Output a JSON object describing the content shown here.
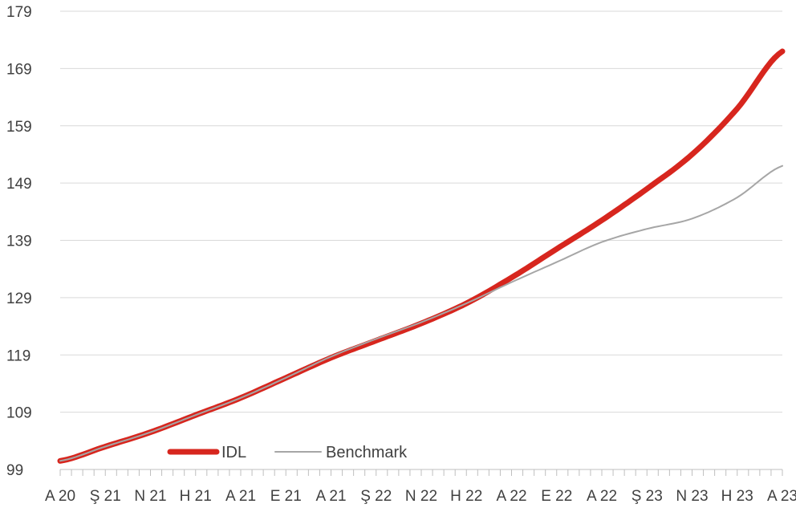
{
  "chart_data": {
    "type": "line",
    "title": "",
    "xlabel": "",
    "ylabel": "",
    "ylim": [
      99,
      179
    ],
    "yticks": [
      99,
      109,
      119,
      129,
      139,
      149,
      159,
      169,
      179
    ],
    "grid": true,
    "legend_position": "bottom-left",
    "categories": [
      "A 20",
      "Ş 21",
      "N 21",
      "H 21",
      "A 21",
      "E 21",
      "A 21",
      "Ş 22",
      "N 22",
      "H 22",
      "A 22",
      "E 22",
      "A 22",
      "Ş 23",
      "N 23",
      "H 23",
      "A 23"
    ],
    "series": [
      {
        "name": "IDL",
        "color": "#d7261e",
        "values": [
          100.5,
          103.0,
          105.5,
          108.5,
          111.5,
          115.0,
          118.5,
          121.5,
          124.5,
          128.0,
          132.5,
          137.5,
          142.5,
          148.0,
          154.0,
          162.0,
          172.0
        ]
      },
      {
        "name": "Benchmark",
        "color": "#a6a6a6",
        "values": [
          100.5,
          103.0,
          105.5,
          108.5,
          111.5,
          115.0,
          118.7,
          121.8,
          124.7,
          128.0,
          131.7,
          135.2,
          138.7,
          141.0,
          142.8,
          146.5,
          152.0
        ]
      }
    ]
  }
}
